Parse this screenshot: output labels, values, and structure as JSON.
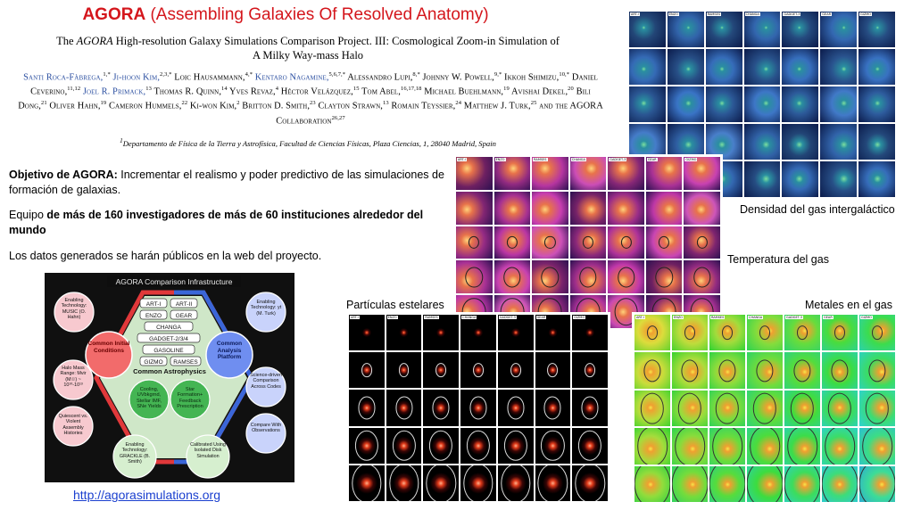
{
  "header": {
    "title_strong": "AGORA",
    "title_rest": " (Assembling Galaxies Of Resolved Anatomy)"
  },
  "paper": {
    "title_line1_prefix": "The ",
    "title_line1_italic": "AGORA",
    "title_line1_rest": " High-resolution Galaxy Simulations Comparison Project. III: Cosmological Zoom-in Simulation of",
    "title_line2": "A Milky Way-mass Halo",
    "authors": [
      {
        "text": "Santi Roca-Fàbrega,",
        "sup": "1,*",
        "blue": true
      },
      {
        "text": " Ji-hoon Kim,",
        "sup": "2,3,*",
        "blue": true
      },
      {
        "text": " Loic Hausammann,",
        "sup": "4,*",
        "blue": false
      },
      {
        "text": " Kentaro Nagamine,",
        "sup": "5,6,7,*",
        "blue": true
      },
      {
        "text": " Alessandro Lupi,",
        "sup": "8,*",
        "blue": false
      },
      {
        "text": " Johnny W. Powell,",
        "sup": "9,*",
        "blue": false
      },
      {
        "text": " Ikkoh Shimizu,",
        "sup": "10,*",
        "blue": false
      },
      {
        "text": " Daniel Ceverino,",
        "sup": "11,12",
        "blue": false
      },
      {
        "text": " Joel R. Primack,",
        "sup": "13",
        "blue": true
      },
      {
        "text": " Thomas R. Quinn,",
        "sup": "14",
        "blue": false
      },
      {
        "text": " Yves Revaz,",
        "sup": "4",
        "blue": false
      },
      {
        "text": " Héctor Velázquez,",
        "sup": "15",
        "blue": false
      },
      {
        "text": " Tom Abel,",
        "sup": "16,17,18",
        "blue": false
      },
      {
        "text": " Michael Buehlmann,",
        "sup": "19",
        "blue": false
      },
      {
        "text": " Avishai Dekel,",
        "sup": "20",
        "blue": false
      },
      {
        "text": " Bili Dong,",
        "sup": "21",
        "blue": false
      },
      {
        "text": " Oliver Hahn,",
        "sup": "19",
        "blue": false
      },
      {
        "text": " Cameron Hummels,",
        "sup": "22",
        "blue": false
      },
      {
        "text": " Ki-won Kim,",
        "sup": "2",
        "blue": false
      },
      {
        "text": " Britton D. Smith,",
        "sup": "23",
        "blue": false
      },
      {
        "text": " Clayton Strawn,",
        "sup": "13",
        "blue": false
      },
      {
        "text": " Romain Teyssier,",
        "sup": "24",
        "blue": false
      },
      {
        "text": " Matthew J. Turk,",
        "sup": "25",
        "blue": false
      },
      {
        "text": " and the AGORA Collaboration",
        "sup": "26,27",
        "blue": false
      }
    ],
    "affiliation_sup": "1",
    "affiliation": "Departamento de Física de la Tierra y Astrofísica, Facultad de Ciencias Físicas, Plaza Ciencias, 1, 28040 Madrid, Spain"
  },
  "body": {
    "objective_bold": "Objetivo de AGORA:",
    "objective_rest": " Incrementar el realismo y poder predictivo de las simulaciones de formación de galaxias.",
    "team_prefix": "Equipo ",
    "team_bold": "de más de 160 investigadores de más de 60 instituciones alrededor del mundo",
    "public": "Los datos generados se harán públicos en la web del proyecto.",
    "link": "http://agorasimulations.org"
  },
  "captions": {
    "gas_density": "Densidad del gas intergaláctico",
    "gas_temperature": "Temperatura del gas",
    "stellar_particles": "Partículas estelares",
    "gas_metals": "Metales en el gas"
  },
  "infra": {
    "title": "AGORA Comparison Infrastructure",
    "codes_row1": [
      "ART-I",
      "ART-II"
    ],
    "codes_row2": [
      "ENZO",
      "GEAR"
    ],
    "codes_row3": [
      "CHANGA"
    ],
    "codes_row4": [
      "GADGET-2/3/4"
    ],
    "codes_row5": [
      "GASOLINE"
    ],
    "codes_row6": [
      "GIZMO",
      "RAMSES"
    ],
    "common_astro": "Common Astrophysics",
    "left_hub": "Common Initial Conditions",
    "right_hub": "Common Analysis Platform",
    "bubble_music": "Enabling Technology: MUSIC (O. Hahn)",
    "bubble_mass": "Halo Mass Range: Mvir (M☉) ~ 10¹⁰-10¹³",
    "bubble_quiescent": "Quiescent vs. Violent Assembly Histories",
    "bubble_yt": "Enabling Technology: yt (M. Turk)",
    "bubble_science": "Science-driven Comparison Across Codes",
    "bubble_obs": "Compare With Observations",
    "bubble_cooling": "Cooling, UVbkgrnd, Stellar IMF, SNe Yields",
    "bubble_star": "Star Formation+ Feedback Prescription",
    "bubble_grackle": "Enabling Technology: GRACKLE (B. Smith)",
    "bubble_calibrated": "Calibrated Using Isolated Disk Simulation"
  },
  "panel_labels": [
    "ART-I",
    "ENZO",
    "RAMSES",
    "CHANGA",
    "GADGET-3",
    "GEAR",
    "GIZMO"
  ],
  "colors": {
    "title_red": "#d4161c",
    "author_blue": "#2a4ea0",
    "link_blue": "#1a3fcf",
    "infra_red": "#e0383a",
    "infra_blue": "#3a66d8",
    "infra_green": "#3cb04a"
  }
}
